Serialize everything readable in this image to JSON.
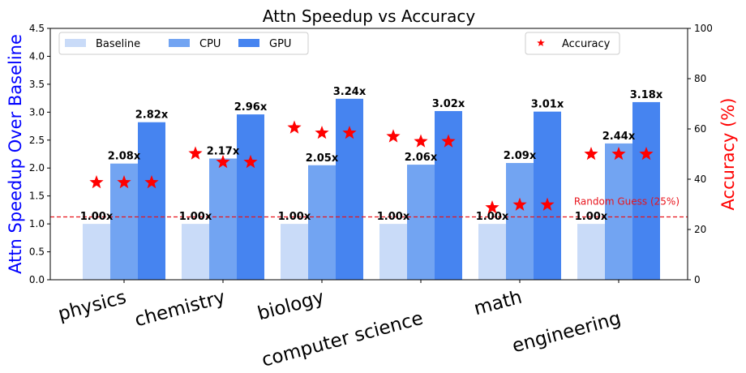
{
  "chart_data": {
    "type": "bar",
    "title": "Attn Speedup vs Accuracy",
    "xlabel": "",
    "ylabel": "Attn Speedup Over Baseline",
    "ylabel_right": "Accuracy (%)",
    "ylim": [
      0,
      4.5
    ],
    "ylim_right": [
      0,
      100
    ],
    "yticks": [
      "0.0",
      "0.5",
      "1.0",
      "1.5",
      "2.0",
      "2.5",
      "3.0",
      "3.5",
      "4.0",
      "4.5"
    ],
    "yticks_right": [
      "0",
      "20",
      "40",
      "60",
      "80",
      "100"
    ],
    "categories": [
      "physics",
      "chemistry",
      "biology",
      "computer science",
      "math",
      "engineering"
    ],
    "series": [
      {
        "name": "Baseline",
        "color": "#c9dbf8",
        "values": [
          1.0,
          1.0,
          1.0,
          1.0,
          1.0,
          1.0
        ],
        "labels": [
          "1.00x",
          "1.00x",
          "1.00x",
          "1.00x",
          "1.00x",
          "1.00x"
        ]
      },
      {
        "name": "CPU",
        "color": "#72a4f2",
        "values": [
          2.08,
          2.17,
          2.05,
          2.06,
          2.09,
          2.44
        ],
        "labels": [
          "2.08x",
          "2.17x",
          "2.05x",
          "2.06x",
          "2.09x",
          "2.44x"
        ]
      },
      {
        "name": "GPU",
        "color": "#4684f0",
        "values": [
          2.82,
          2.96,
          3.24,
          3.02,
          3.01,
          3.18
        ],
        "labels": [
          "2.82x",
          "2.96x",
          "3.24x",
          "3.02x",
          "3.01x",
          "3.18x"
        ]
      }
    ],
    "accuracy": {
      "name": "Accuracy",
      "color": "#ff0000",
      "values": [
        [
          38.7,
          38.7,
          38.7
        ],
        [
          50.2,
          46.8,
          46.8
        ],
        [
          60.5,
          58.4,
          58.4
        ],
        [
          57.0,
          55.0,
          55.0
        ],
        [
          28.7,
          29.8,
          29.8
        ],
        [
          50.0,
          50.0,
          50.0
        ]
      ]
    },
    "reference_line": {
      "label": "Random Guess (25%)",
      "value": 25,
      "axis": "right",
      "color": "#e8141c"
    },
    "legend": {
      "left": "upper-left",
      "right": "upper-right"
    },
    "grid": false
  }
}
